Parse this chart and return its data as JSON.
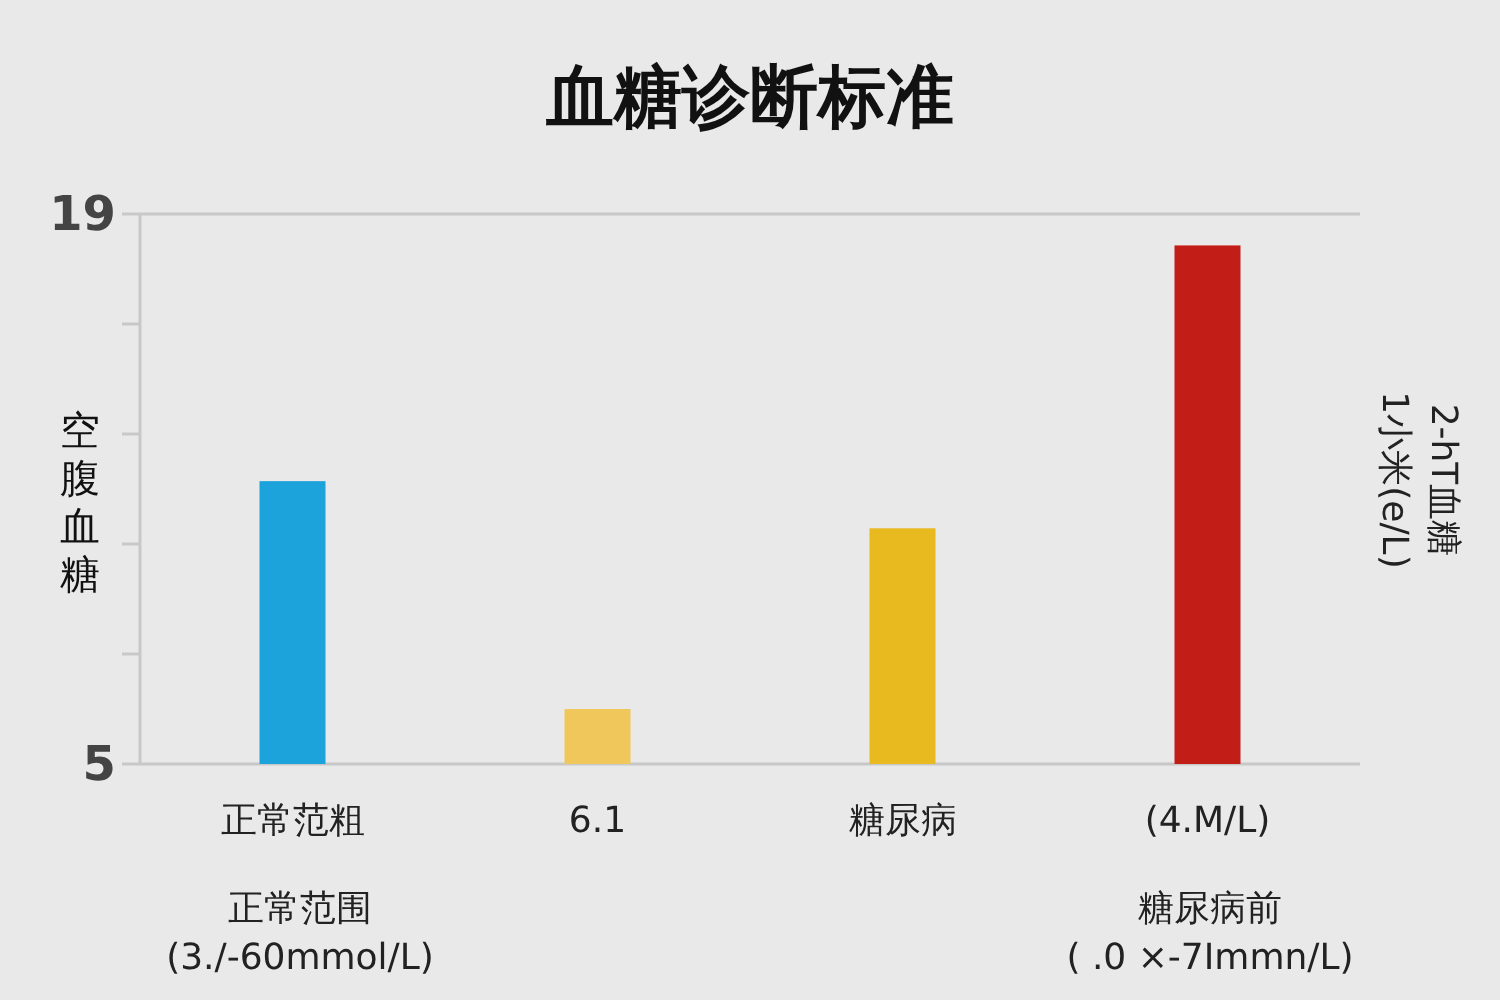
{
  "chart_data": {
    "type": "bar",
    "title": "血糖诊断标准",
    "ylabel": "空腹血糖",
    "y2label": "2-hT血糖\n1小米(e/L)",
    "categories": [
      "正常范粗",
      "6.1",
      "糖尿病",
      "(4.M/L)"
    ],
    "values": [
      12.2,
      6.4,
      11.0,
      18.2
    ],
    "colors": [
      "#1ca3db",
      "#efc75a",
      "#e9b920",
      "#c21d16"
    ],
    "ylim": [
      5,
      19
    ],
    "yticks": [
      5,
      {
        "value": 7.8,
        "label": null
      },
      {
        "value": 10.6,
        "label": null
      },
      {
        "value": 13.4,
        "label": null
      },
      {
        "value": 16.2,
        "label": null
      },
      19
    ],
    "annotations": [
      "正常范围\n(3./-60mmol/L)",
      "糖尿病前\n( .0 ×-7Immn/L)"
    ]
  }
}
